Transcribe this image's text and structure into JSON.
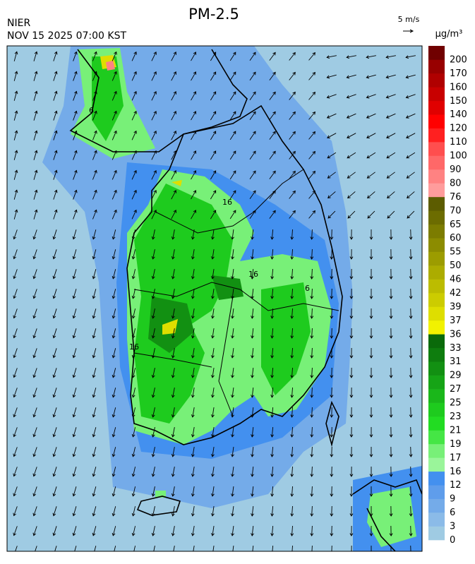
{
  "header": {
    "title": "PM-2.5",
    "agency": "NIER",
    "timestamp": "NOV 15 2025 07:00 KST",
    "wind_scale": "5 m/s",
    "unit": "μg/m³"
  },
  "colorbar": {
    "levels": [
      0,
      3,
      6,
      9,
      12,
      16,
      17,
      19,
      21,
      23,
      25,
      27,
      29,
      31,
      33,
      36,
      37,
      39,
      42,
      46,
      50,
      55,
      60,
      65,
      70,
      76,
      80,
      90,
      100,
      110,
      120,
      140,
      150,
      160,
      170,
      200
    ],
    "colors": [
      "#9fcbe3",
      "#8bbbe8",
      "#74abe9",
      "#5f9deb",
      "#4390ef",
      "#9af59a",
      "#78f078",
      "#45e645",
      "#22dc22",
      "#1ecb1e",
      "#1ab71a",
      "#16a416",
      "#129012",
      "#0e7d0e",
      "#0a6a0a",
      "#f2f200",
      "#dede00",
      "#cccc00",
      "#bcbc00",
      "#acac00",
      "#9c9c00",
      "#8c8c00",
      "#7c7c00",
      "#6c6c00",
      "#5c5c00",
      "#ff9c9c",
      "#ff8282",
      "#ff6868",
      "#ff4e4e",
      "#ff2020",
      "#ff0000",
      "#e00000",
      "#c80000",
      "#b00000",
      "#980000",
      "#700000"
    ]
  },
  "map": {
    "contour_labels": [
      16,
      16,
      16,
      6,
      6
    ]
  }
}
